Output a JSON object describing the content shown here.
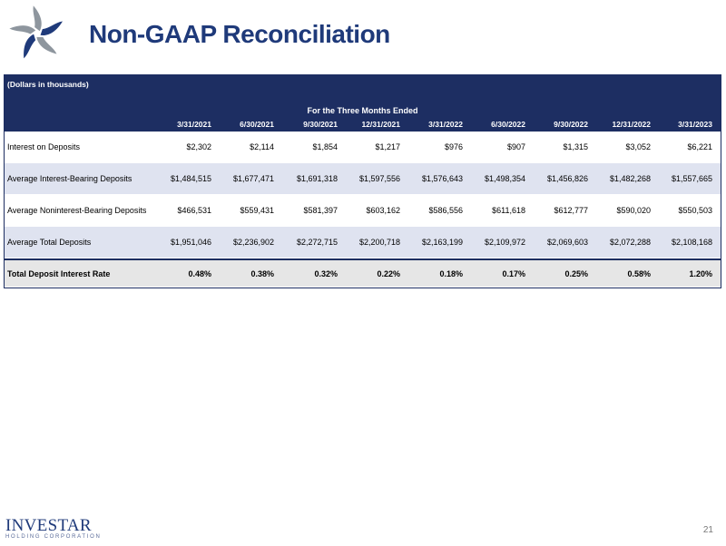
{
  "header": {
    "title": "Non-GAAP Reconciliation"
  },
  "table": {
    "units_note": "(Dollars in thousands)",
    "period_label": "For the Three Months Ended",
    "columns": [
      "3/31/2021",
      "6/30/2021",
      "9/30/2021",
      "12/31/2021",
      "3/31/2022",
      "6/30/2022",
      "9/30/2022",
      "12/31/2022",
      "3/31/2023"
    ],
    "rows": [
      {
        "label": "Interest on Deposits",
        "values": [
          "$2,302",
          "$2,114",
          "$1,854",
          "$1,217",
          "$976",
          "$907",
          "$1,315",
          "$3,052",
          "$6,221"
        ]
      },
      {
        "label": "Average Interest-Bearing Deposits",
        "values": [
          "$1,484,515",
          "$1,677,471",
          "$1,691,318",
          "$1,597,556",
          "$1,576,643",
          "$1,498,354",
          "$1,456,826",
          "$1,482,268",
          "$1,557,665"
        ]
      },
      {
        "label": "Average Noninterest-Bearing Deposits",
        "values": [
          "$466,531",
          "$559,431",
          "$581,397",
          "$603,162",
          "$586,556",
          "$611,618",
          "$612,777",
          "$590,020",
          "$550,503"
        ]
      },
      {
        "label": "Average Total Deposits",
        "values": [
          "$1,951,046",
          "$2,236,902",
          "$2,272,715",
          "$2,200,718",
          "$2,163,199",
          "$2,109,972",
          "$2,069,603",
          "$2,072,288",
          "$2,108,168"
        ]
      }
    ],
    "total_row": {
      "label": "Total Deposit Interest Rate",
      "values": [
        "0.48%",
        "0.38%",
        "0.32%",
        "0.22%",
        "0.18%",
        "0.17%",
        "0.25%",
        "0.58%",
        "1.20%"
      ]
    }
  },
  "footer": {
    "logo_name": "INVESTAR",
    "logo_sub": "HOLDING CORPORATION",
    "page_number": "21"
  }
}
